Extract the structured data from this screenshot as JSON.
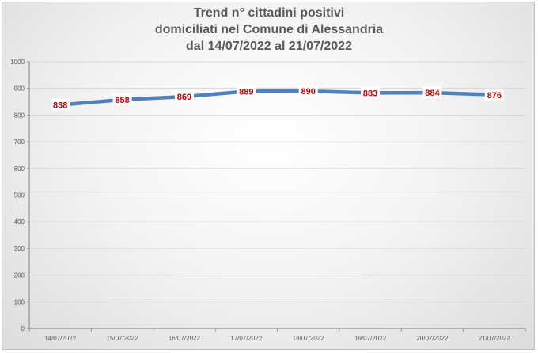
{
  "chart_data": {
    "type": "line",
    "title_lines": [
      "Trend n° cittadini positivi",
      "domiciliati nel Comune di Alessandria",
      "dal 14/07/2022 al 21/07/2022"
    ],
    "categories": [
      "14/07/2022",
      "15/07/2022",
      "16/07/2022",
      "17/07/2022",
      "18/07/2022",
      "19/07/2022",
      "20/07/2022",
      "21/07/2022"
    ],
    "series": [
      {
        "values": [
          838,
          858,
          869,
          889,
          890,
          883,
          884,
          876
        ]
      }
    ],
    "ylim": [
      0,
      1000
    ],
    "yticks": [
      0,
      100,
      200,
      300,
      400,
      500,
      600,
      700,
      800,
      900,
      1000
    ],
    "grid": true,
    "legend": "none",
    "colors": {
      "line": "#4f81bd",
      "label_text": "#c00000",
      "grid": "#d0d0d0",
      "axis": "#7f7f7f"
    }
  }
}
